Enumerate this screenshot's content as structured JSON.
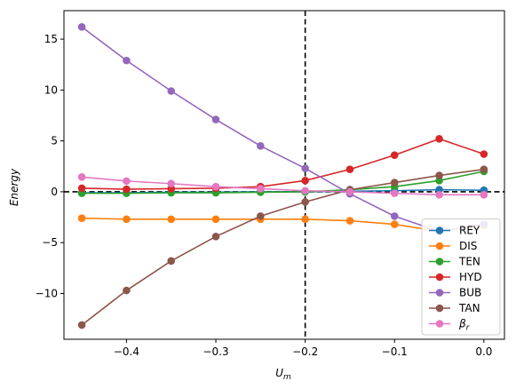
{
  "chart_data": {
    "type": "line",
    "title": "",
    "xlabel": "U_m",
    "ylabel": "Energy",
    "xlim": [
      -0.47,
      0.023
    ],
    "ylim": [
      -14.5,
      17.8
    ],
    "xticks": [
      -0.4,
      -0.3,
      -0.2,
      -0.1,
      0.0
    ],
    "xtick_labels": [
      "−0.4",
      "−0.3",
      "−0.2",
      "−0.1",
      "0.0"
    ],
    "yticks": [
      -10,
      -5,
      0,
      5,
      10,
      15
    ],
    "ytick_labels": [
      "−10",
      "−5",
      "0",
      "5",
      "10",
      "15"
    ],
    "grid": false,
    "legend_position": "lower-right",
    "reference_lines": {
      "vertical_x": -0.2,
      "horizontal_y": 0,
      "style": "dashed",
      "color": "#000000"
    },
    "x": [
      -0.45,
      -0.4,
      -0.35,
      -0.3,
      -0.25,
      -0.2,
      -0.15,
      -0.1,
      -0.05,
      0.0
    ],
    "series": [
      {
        "name": "REY",
        "color": "#1f77b4",
        "values": [
          -0.1,
          -0.1,
          -0.05,
          -0.05,
          0.0,
          0.0,
          0.05,
          0.1,
          0.2,
          0.15
        ]
      },
      {
        "name": "DIS",
        "color": "#ff7f0e",
        "values": [
          -2.6,
          -2.7,
          -2.7,
          -2.7,
          -2.7,
          -2.7,
          -2.85,
          -3.2,
          -3.9,
          -3.3
        ]
      },
      {
        "name": "TEN",
        "color": "#2ca02c",
        "values": [
          -0.15,
          -0.15,
          -0.1,
          -0.1,
          -0.05,
          0.0,
          0.2,
          0.5,
          1.1,
          2.0
        ]
      },
      {
        "name": "HYD",
        "color": "#d62728",
        "values": [
          0.35,
          0.25,
          0.3,
          0.35,
          0.5,
          1.1,
          2.2,
          3.6,
          5.2,
          3.7
        ]
      },
      {
        "name": "BUB",
        "color": "#9467bd",
        "values": [
          16.2,
          12.9,
          9.9,
          7.1,
          4.5,
          2.3,
          -0.2,
          -2.4,
          -3.9,
          -3.2
        ]
      },
      {
        "name": "TAN",
        "color": "#8c564b",
        "values": [
          -13.1,
          -9.7,
          -6.8,
          -4.4,
          -2.4,
          -1.0,
          0.2,
          0.9,
          1.6,
          2.2
        ]
      },
      {
        "name": "β_r",
        "color": "#e377c2",
        "values": [
          1.45,
          1.05,
          0.8,
          0.5,
          0.3,
          0.1,
          0.0,
          -0.15,
          -0.3,
          -0.3
        ]
      }
    ]
  }
}
